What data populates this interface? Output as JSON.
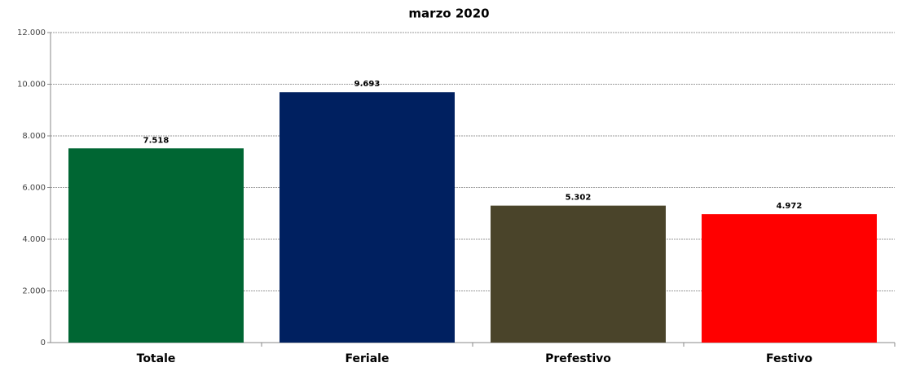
{
  "chart_data": {
    "type": "bar",
    "title": "marzo 2020",
    "categories": [
      "Totale",
      "Feriale",
      "Prefestivo",
      "Festivo"
    ],
    "values": [
      7518,
      9693,
      5302,
      4972
    ],
    "value_labels": [
      "7.518",
      "9.693",
      "5.302",
      "4.972"
    ],
    "colors": [
      "#006633",
      "#002060",
      "#4a442a",
      "#ff0000"
    ],
    "ylim": [
      0,
      12000
    ],
    "yticks": [
      0,
      {
        "value": 2000,
        "label": "2.000"
      },
      {
        "value": 4000,
        "label": "4.000"
      },
      {
        "value": 6000,
        "label": "6.000"
      },
      {
        "value": 8000,
        "label": "8.000"
      },
      {
        "value": 10000,
        "label": "10.000"
      },
      {
        "value": 12000,
        "label": "12.000"
      }
    ],
    "grid": true
  }
}
